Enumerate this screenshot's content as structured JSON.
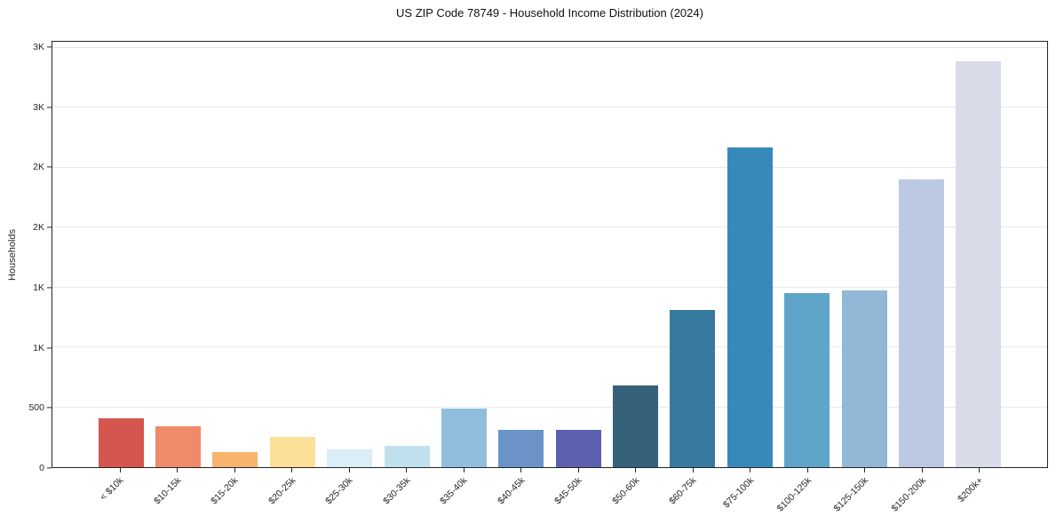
{
  "chart_data": {
    "type": "bar",
    "title": "US ZIP Code 78749 - Household Income Distribution (2024)",
    "xlabel": "",
    "ylabel": "Households",
    "categories": [
      "< $10k",
      "$10-15k",
      "$15-20k",
      "$20-25k",
      "$25-30k",
      "$30-35k",
      "$35-40k",
      "$40-45k",
      "$45-50k",
      "$50-60k",
      "$60-75k",
      "$75-100k",
      "$100-125k",
      "$125-150k",
      "$150-200k",
      "$200k+"
    ],
    "values": [
      405,
      340,
      125,
      255,
      150,
      180,
      490,
      315,
      315,
      680,
      1310,
      2665,
      1455,
      1475,
      2405,
      3390
    ],
    "bar_colors": [
      "#d5564e",
      "#f08a68",
      "#f8b46e",
      "#fce098",
      "#dbedf6",
      "#c1e0ee",
      "#92bedd",
      "#6b93c8",
      "#5c60ae",
      "#36617b",
      "#377a9f",
      "#3789bb",
      "#5fa5c9",
      "#93b7d6",
      "#bcc9e2",
      "#d9dbe9"
    ],
    "ylim": [
      0,
      3550
    ],
    "yticks": [
      {
        "value": 0,
        "label": "0"
      },
      {
        "value": 500,
        "label": "500"
      },
      {
        "value": 1000,
        "label": "1K"
      },
      {
        "value": 1500,
        "label": "1K"
      },
      {
        "value": 2000,
        "label": "2K"
      },
      {
        "value": 2500,
        "label": "2K"
      },
      {
        "value": 3000,
        "label": "3K"
      },
      {
        "value": 3500,
        "label": "3K"
      }
    ],
    "grid": true,
    "legend": "none",
    "gridline_color": "#e8e8ec",
    "spine_color": "#262626",
    "background_color": "#ffffff"
  }
}
